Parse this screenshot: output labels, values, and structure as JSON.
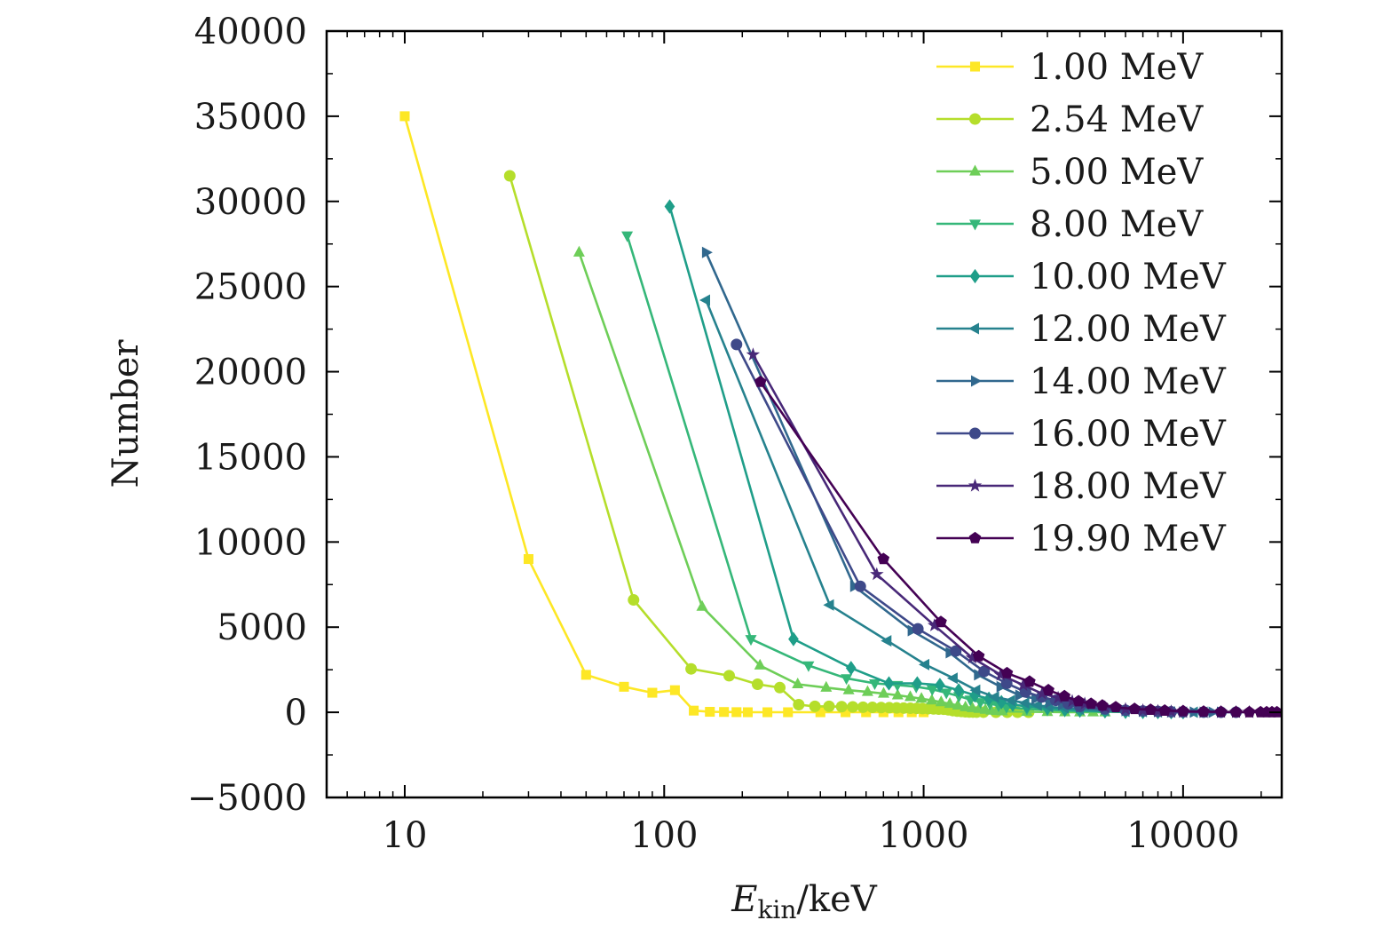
{
  "chart_data": {
    "type": "line",
    "xscale": "log",
    "xlim": [
      5,
      24000
    ],
    "ylim": [
      -5000,
      40000
    ],
    "xlabel": {
      "main": "E",
      "sub": "kin",
      "unit": "/keV"
    },
    "ylabel": "Number",
    "xticks": [
      10,
      100,
      1000,
      10000
    ],
    "xtick_labels": [
      "10",
      "100",
      "1000",
      "10000"
    ],
    "yticks": [
      -5000,
      0,
      5000,
      10000,
      15000,
      20000,
      25000,
      30000,
      35000,
      40000
    ],
    "ytick_labels": [
      "−5000",
      "0",
      "5000",
      "10000",
      "15000",
      "20000",
      "25000",
      "30000",
      "35000",
      "40000"
    ],
    "legend_position": "top-right",
    "grid": false,
    "series": [
      {
        "name": "1.00 MeV",
        "color": "#fde725",
        "marker": "square",
        "x": [
          10,
          30,
          50,
          70,
          90,
          110,
          130,
          150,
          170,
          190,
          210,
          250,
          300,
          400,
          500,
          600,
          700,
          800,
          900,
          1000
        ],
        "y": [
          35000,
          9000,
          2200,
          1500,
          1150,
          1300,
          100,
          30,
          20,
          10,
          5,
          5,
          5,
          5,
          5,
          5,
          5,
          5,
          5,
          5
        ]
      },
      {
        "name": "2.54 MeV",
        "color": "#b5de2b",
        "marker": "circle",
        "x": [
          25.4,
          76.2,
          127,
          178,
          229,
          279,
          330,
          381,
          432,
          483,
          533,
          584,
          635,
          686,
          737,
          787,
          838,
          889,
          940,
          990,
          1041,
          1092,
          1143,
          1194,
          1245,
          1295,
          1346,
          1397,
          1448,
          1499,
          1549,
          1600,
          1700,
          1900,
          2100,
          2300,
          2540
        ],
        "y": [
          31500,
          6600,
          2550,
          2150,
          1650,
          1450,
          450,
          350,
          350,
          330,
          320,
          300,
          290,
          280,
          270,
          260,
          250,
          240,
          230,
          220,
          210,
          200,
          190,
          180,
          150,
          100,
          70,
          50,
          30,
          20,
          15,
          10,
          8,
          5,
          5,
          5,
          5
        ]
      },
      {
        "name": "5.00 MeV",
        "color": "#6ece58",
        "marker": "triangle-up",
        "x": [
          47,
          140,
          234,
          327,
          421,
          514,
          608,
          701,
          794,
          888,
          981,
          1075,
          1168,
          1262,
          1355,
          1449,
          1542,
          1636,
          1729,
          1823,
          1916,
          2010,
          2500,
          3000,
          3500,
          4000,
          4500,
          5000
        ],
        "y": [
          27000,
          6200,
          2750,
          1650,
          1450,
          1300,
          1200,
          1100,
          1000,
          900,
          800,
          700,
          600,
          500,
          400,
          300,
          250,
          200,
          150,
          100,
          80,
          60,
          30,
          20,
          10,
          5,
          5,
          5
        ]
      },
      {
        "name": "8.00 MeV",
        "color": "#35b779",
        "marker": "triangle-down",
        "x": [
          72,
          216,
          360,
          504,
          648,
          792,
          936,
          1080,
          1224,
          1368,
          1512,
          1656,
          1800,
          1944,
          2088,
          2500,
          3000,
          3500,
          4000,
          5000,
          6000,
          7000,
          8000
        ],
        "y": [
          28000,
          4300,
          2750,
          2000,
          1700,
          1600,
          1500,
          1350,
          1150,
          950,
          750,
          600,
          500,
          400,
          300,
          200,
          150,
          100,
          60,
          30,
          15,
          10,
          5
        ]
      },
      {
        "name": "10.00 MeV",
        "color": "#1f9e89",
        "marker": "diamond",
        "x": [
          105,
          315,
          525,
          735,
          945,
          1155,
          1365,
          1575,
          1785,
          1995,
          2205,
          2500,
          3000,
          3500,
          4000,
          5000,
          6000,
          7000,
          8000,
          9000,
          10000
        ],
        "y": [
          29700,
          4300,
          2600,
          1700,
          1700,
          1600,
          1300,
          1000,
          800,
          600,
          450,
          350,
          250,
          150,
          100,
          60,
          30,
          20,
          10,
          5,
          5
        ]
      },
      {
        "name": "12.00 MeV",
        "color": "#26828e",
        "marker": "triangle-left",
        "x": [
          145,
          435,
          725,
          1015,
          1305,
          1595,
          1885,
          2175,
          2465,
          2755,
          3045,
          3500,
          4000,
          5000,
          6000,
          7000,
          8000,
          9000,
          10000,
          11000,
          12000
        ],
        "y": [
          24200,
          6300,
          4200,
          2800,
          2000,
          1300,
          900,
          700,
          550,
          420,
          320,
          250,
          180,
          100,
          60,
          40,
          25,
          15,
          10,
          5,
          5
        ]
      },
      {
        "name": "14.00 MeV",
        "color": "#31688e",
        "marker": "triangle-right",
        "x": [
          145,
          540,
          900,
          1260,
          1620,
          1980,
          2340,
          2700,
          3060,
          3420,
          4000,
          5000,
          6000,
          7000,
          8000,
          9000,
          10000,
          11000,
          12000,
          13000,
          14000
        ],
        "y": [
          27000,
          7400,
          4800,
          3500,
          2200,
          1500,
          1000,
          800,
          600,
          450,
          300,
          180,
          100,
          60,
          40,
          25,
          15,
          10,
          5,
          5,
          5
        ]
      },
      {
        "name": "16.00 MeV",
        "color": "#3e4989",
        "marker": "circle",
        "x": [
          190,
          570,
          950,
          1330,
          1710,
          2090,
          2470,
          2850,
          3230,
          3610,
          4000,
          5000,
          6000,
          7000,
          8000,
          9000,
          10000,
          12000,
          14000,
          16000
        ],
        "y": [
          21600,
          7400,
          4900,
          3600,
          2400,
          1700,
          1200,
          900,
          700,
          500,
          350,
          200,
          120,
          80,
          50,
          30,
          20,
          10,
          5,
          5
        ]
      },
      {
        "name": "18.00 MeV",
        "color": "#482878",
        "marker": "star",
        "x": [
          220,
          660,
          1100,
          1540,
          1980,
          2420,
          2860,
          3300,
          3740,
          4180,
          5000,
          6000,
          7000,
          8000,
          9000,
          10000,
          12000,
          14000,
          16000,
          18000
        ],
        "y": [
          21000,
          8100,
          5100,
          3200,
          2200,
          1600,
          1100,
          850,
          650,
          500,
          300,
          180,
          110,
          70,
          45,
          30,
          15,
          10,
          5,
          5
        ]
      },
      {
        "name": "19.90 MeV",
        "color": "#440154",
        "marker": "pentagon",
        "x": [
          235,
          700,
          1165,
          1630,
          2095,
          2560,
          3025,
          3490,
          3955,
          4420,
          4885,
          5500,
          6500,
          7500,
          8500,
          10000,
          12000,
          14000,
          16000,
          18000,
          19900,
          21000,
          22000,
          23000
        ],
        "y": [
          19400,
          9000,
          5300,
          3300,
          2300,
          1800,
          1300,
          950,
          650,
          500,
          400,
          300,
          200,
          150,
          100,
          70,
          40,
          25,
          15,
          10,
          5,
          5,
          5,
          5
        ]
      }
    ]
  }
}
